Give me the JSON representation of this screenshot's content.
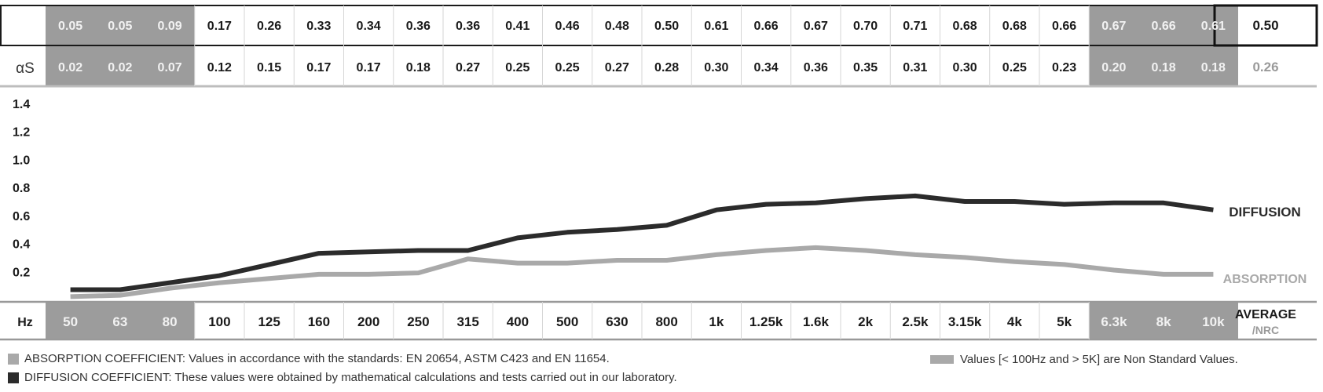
{
  "colors": {
    "diffusion": "#2b2b2b",
    "absorption": "#a9a9a9",
    "nonstandard_band": "#9c9c9c",
    "text_on_band": "#f2f2f2",
    "average_absorption": "#9a9a9a",
    "grid": "#bdbdbd"
  },
  "chart_data": {
    "type": "line",
    "categories": [
      "50",
      "63",
      "80",
      "100",
      "125",
      "160",
      "200",
      "250",
      "315",
      "400",
      "500",
      "630",
      "800",
      "1k",
      "1.25k",
      "1.6k",
      "2k",
      "2.5k",
      "3.15k",
      "4k",
      "5k",
      "6.3k",
      "8k",
      "10k"
    ],
    "nonstandard_categories": [
      "50",
      "63",
      "80",
      "6.3k",
      "8k",
      "10k"
    ],
    "series": [
      {
        "name": "DIFFUSION",
        "role": "diffusion",
        "values": [
          0.05,
          0.05,
          0.09,
          0.17,
          0.26,
          0.33,
          0.34,
          0.36,
          0.36,
          0.41,
          0.46,
          0.48,
          0.5,
          0.61,
          0.66,
          0.67,
          0.7,
          0.71,
          0.68,
          0.68,
          0.66,
          0.67,
          0.66,
          0.61
        ],
        "average": "0.50"
      },
      {
        "name": "ABSORPTION",
        "row_label": "αS",
        "role": "absorption",
        "values": [
          0.02,
          0.02,
          0.07,
          0.12,
          0.15,
          0.17,
          0.17,
          0.18,
          0.27,
          0.25,
          0.25,
          0.27,
          0.28,
          0.3,
          0.34,
          0.36,
          0.35,
          0.31,
          0.3,
          0.25,
          0.23,
          0.2,
          0.18,
          0.18
        ],
        "average": "0.26"
      }
    ],
    "plotted_values": {
      "diffusion": [
        0.07,
        0.07,
        0.12,
        0.17,
        0.25,
        0.33,
        0.34,
        0.35,
        0.35,
        0.44,
        0.48,
        0.5,
        0.53,
        0.64,
        0.68,
        0.69,
        0.72,
        0.74,
        0.7,
        0.7,
        0.68,
        0.69,
        0.69,
        0.64
      ],
      "absorption": [
        0.02,
        0.03,
        0.08,
        0.12,
        0.15,
        0.18,
        0.18,
        0.19,
        0.29,
        0.26,
        0.26,
        0.28,
        0.28,
        0.32,
        0.35,
        0.37,
        0.35,
        0.32,
        0.3,
        0.27,
        0.25,
        0.21,
        0.18,
        0.18
      ]
    },
    "ylim": [
      0,
      1.4
    ],
    "yticks": [
      "0.2",
      "0.4",
      "0.6",
      "0.8",
      "1.0",
      "1.2",
      "1.4"
    ],
    "xlabel": "Hz",
    "average_label": "AVERAGE",
    "average_sublabel": "/NRC"
  },
  "legend": {
    "absorption": "ABSORPTION COEFFICIENT: Values in accordance with the standards: EN 20654, ASTM C423 and EN 11654.",
    "diffusion": "DIFFUSION COEFFICIENT: These values were obtained by mathematical calculations and tests carried out in our laboratory.",
    "nonstandard": "Values [< 100Hz and > 5K] are Non Standard Values."
  }
}
